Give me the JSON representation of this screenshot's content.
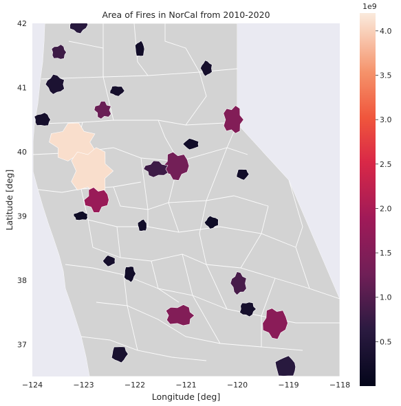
{
  "chart_data": {
    "type": "choropleth-map",
    "title": "Area of Fires in NorCal from 2010-2020",
    "xlabel": "Longitude [deg]",
    "ylabel": "Latitude [deg]",
    "xlim": [
      -124,
      -118
    ],
    "ylim": [
      36.5,
      42
    ],
    "x_ticks": [
      -124,
      -123,
      -122,
      -121,
      -120,
      -119,
      -118
    ],
    "x_tick_labels": [
      "−124",
      "−123",
      "−122",
      "−121",
      "−120",
      "−119",
      "−118"
    ],
    "y_ticks": [
      37,
      38,
      39,
      40,
      41,
      42
    ],
    "y_tick_labels": [
      "37",
      "38",
      "39",
      "40",
      "41",
      "42"
    ],
    "grid": true,
    "colorbar": {
      "colormap": "rocket",
      "range": [
        0,
        4200000000
      ],
      "ticks": [
        500000000,
        1000000000,
        1500000000,
        2000000000,
        2500000000,
        3000000000,
        3500000000,
        4000000000
      ],
      "tick_labels": [
        "0.5",
        "1.0",
        "1.5",
        "2.0",
        "2.5",
        "3.0",
        "3.5",
        "4.0"
      ],
      "offset_label": "1e9"
    },
    "fires": [
      {
        "lon": -123.2,
        "lat": 40.15,
        "area": 4100000000
      },
      {
        "lon": -122.85,
        "lat": 39.7,
        "area": 4100000000
      },
      {
        "lon": -122.75,
        "lat": 39.25,
        "area": 1800000000
      },
      {
        "lon": -122.62,
        "lat": 40.65,
        "area": 1200000000
      },
      {
        "lon": -120.08,
        "lat": 40.5,
        "area": 1500000000
      },
      {
        "lon": -121.2,
        "lat": 39.78,
        "area": 1300000000
      },
      {
        "lon": -121.58,
        "lat": 39.73,
        "area": 800000000
      },
      {
        "lon": -121.12,
        "lat": 37.45,
        "area": 1500000000
      },
      {
        "lon": -119.27,
        "lat": 37.33,
        "area": 1600000000
      },
      {
        "lon": -119.97,
        "lat": 37.95,
        "area": 900000000
      },
      {
        "lon": -123.48,
        "lat": 41.55,
        "area": 800000000
      },
      {
        "lon": -123.1,
        "lat": 41.98,
        "area": 600000000
      },
      {
        "lon": -123.55,
        "lat": 41.05,
        "area": 400000000
      },
      {
        "lon": -123.8,
        "lat": 40.5,
        "area": 300000000
      },
      {
        "lon": -122.35,
        "lat": 40.95,
        "area": 300000000
      },
      {
        "lon": -120.6,
        "lat": 41.3,
        "area": 300000000
      },
      {
        "lon": -121.9,
        "lat": 41.6,
        "area": 250000000
      },
      {
        "lon": -119.9,
        "lat": 39.65,
        "area": 250000000
      },
      {
        "lon": -120.9,
        "lat": 40.12,
        "area": 250000000
      },
      {
        "lon": -119.05,
        "lat": 36.65,
        "area": 600000000
      },
      {
        "lon": -122.3,
        "lat": 36.85,
        "area": 350000000
      },
      {
        "lon": -122.5,
        "lat": 38.3,
        "area": 300000000
      },
      {
        "lon": -121.85,
        "lat": 38.85,
        "area": 250000000
      },
      {
        "lon": -122.1,
        "lat": 38.1,
        "area": 250000000
      },
      {
        "lon": -120.5,
        "lat": 38.9,
        "area": 200000000
      },
      {
        "lon": -123.05,
        "lat": 39.0,
        "area": 200000000
      },
      {
        "lon": -119.8,
        "lat": 37.55,
        "area": 300000000
      }
    ]
  }
}
